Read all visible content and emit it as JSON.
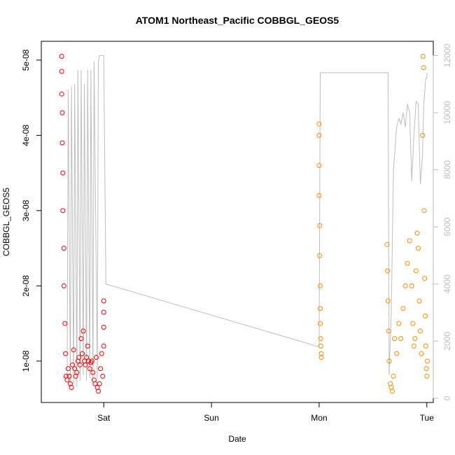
{
  "chart_data": {
    "type": "scatter",
    "title": "ATOM1 Northeast_Pacific COBBGL_GEOS5",
    "xlabel": "Date",
    "ylabel": "COBBGL_GEOS5",
    "x_ticks": [
      "Sat",
      "Sun",
      "Mon",
      "Tue"
    ],
    "y_ticks": [
      "1e-08",
      "2e-08",
      "3e-08",
      "4e-08",
      "5e-08"
    ],
    "y_tick_values": [
      1e-08,
      2e-08,
      3e-08,
      4e-08,
      5e-08
    ],
    "y_range": [
      4.5e-09,
      5.25e-08
    ],
    "y2_ticks": [
      "0",
      "2000",
      "4000",
      "6000",
      "8000",
      "10000",
      "12000"
    ],
    "y2_tick_values": [
      0,
      2000,
      4000,
      6000,
      8000,
      10000,
      12000
    ],
    "y2_range": [
      -150,
      12500
    ],
    "grid": false,
    "colors": {
      "series_1": "#ff0000",
      "series_2": "#ff8c00",
      "altitude_line": "#bebebe"
    },
    "series": [
      {
        "marker": "open-circle",
        "color": "#ff0000",
        "x": [
          -0.39,
          -0.39,
          -0.39,
          -0.385,
          -0.385,
          -0.38,
          -0.38,
          -0.37,
          -0.37,
          -0.36,
          -0.355,
          -0.35,
          -0.34,
          -0.33,
          -0.32,
          -0.31,
          -0.3,
          -0.29,
          -0.28,
          -0.27,
          -0.26,
          -0.25,
          -0.24,
          -0.23,
          -0.22,
          -0.21,
          -0.2,
          -0.19,
          -0.18,
          -0.17,
          -0.16,
          -0.15,
          -0.14,
          -0.13,
          -0.12,
          -0.11,
          -0.1,
          -0.09,
          -0.08,
          -0.07,
          -0.06,
          -0.05,
          -0.04,
          -0.03,
          -0.02,
          -0.01,
          0.0,
          0.0,
          0.0,
          0.0
        ],
        "y": [
          5.05e-08,
          4.85e-08,
          4.55e-08,
          4.3e-08,
          3.9e-08,
          3.5e-08,
          3e-08,
          2.5e-08,
          2e-08,
          1.5e-08,
          1.1e-08,
          8e-09,
          7.5e-09,
          9e-09,
          8e-09,
          7e-09,
          6.5e-09,
          9.5e-09,
          1.15e-08,
          9e-09,
          8e-09,
          8.5e-09,
          1e-08,
          1.05e-08,
          9.5e-09,
          1.3e-08,
          1.1e-08,
          1.4e-08,
          1e-08,
          9.5e-09,
          1.05e-08,
          1.2e-08,
          1e-08,
          9e-09,
          9.8e-09,
          1e-08,
          8.5e-09,
          7.5e-09,
          7e-09,
          1.05e-08,
          6.5e-09,
          6e-09,
          7e-09,
          9e-09,
          1.1e-08,
          8e-09,
          1.2e-08,
          1.45e-08,
          1.65e-08,
          1.8e-08
        ]
      },
      {
        "marker": "open-circle",
        "color": "#ff8c00",
        "x": [
          2.0,
          2.0,
          2.0,
          2.0,
          2.005,
          2.005,
          2.01,
          2.01,
          2.01,
          2.015,
          2.015,
          2.02,
          2.02,
          2.63,
          2.635,
          2.64,
          2.645,
          2.65,
          2.66,
          2.67,
          2.68,
          2.69,
          2.7,
          2.72,
          2.74,
          2.76,
          2.78,
          2.8,
          2.82,
          2.84,
          2.86,
          2.87,
          2.88,
          2.89,
          2.9,
          2.91,
          2.92,
          2.93,
          2.94,
          2.95,
          2.96,
          2.965,
          2.97,
          2.975,
          2.98,
          2.985,
          2.99,
          2.995,
          3.0,
          3.005
        ],
        "y": [
          4.15e-08,
          4e-08,
          3.6e-08,
          3.2e-08,
          2.8e-08,
          2.4e-08,
          2e-08,
          1.7e-08,
          1.5e-08,
          1.3e-08,
          1.2e-08,
          1.1e-08,
          1.05e-08,
          2.55e-08,
          2.2e-08,
          1.8e-08,
          1.4e-08,
          1e-08,
          7e-09,
          6.5e-09,
          6e-09,
          8e-09,
          1.3e-08,
          1.1e-08,
          1.5e-08,
          1.3e-08,
          1.7e-08,
          2e-08,
          2.3e-08,
          2.6e-08,
          2e-08,
          1.5e-08,
          1.2e-08,
          1.3e-08,
          2.2e-08,
          2.7e-08,
          2.5e-08,
          1.8e-08,
          1.4e-08,
          1.1e-08,
          4e-08,
          5.05e-08,
          4.9e-08,
          3e-08,
          2.1e-08,
          1.6e-08,
          1.2e-08,
          9e-09,
          8e-09,
          1e-08
        ]
      }
    ],
    "y2_line": {
      "color": "#bebebe",
      "x": [
        -0.38,
        -0.34,
        -0.33,
        -0.31,
        -0.3,
        -0.28,
        -0.27,
        -0.25,
        -0.24,
        -0.22,
        -0.21,
        -0.19,
        -0.18,
        -0.16,
        -0.15,
        -0.13,
        -0.12,
        -0.1,
        -0.09,
        -0.06,
        -0.05,
        -0.04,
        -0.02,
        -0.01,
        0.0,
        0.02,
        2.0,
        2.01,
        2.02,
        2.64,
        2.65,
        2.67,
        2.69,
        2.72,
        2.74,
        2.76,
        2.78,
        2.8,
        2.82,
        2.84,
        2.86,
        2.88,
        2.9,
        2.92,
        2.94,
        2.96,
        2.97,
        2.99,
        3.0,
        3.0
      ],
      "y": [
        700,
        800,
        10800,
        400,
        10900,
        500,
        11000,
        400,
        11500,
        600,
        11500,
        800,
        11000,
        600,
        11500,
        700,
        11500,
        600,
        11800,
        700,
        11800,
        12000,
        12000,
        12000,
        12000,
        4000,
        1800,
        11400,
        11400,
        11400,
        800,
        3000,
        8000,
        9500,
        9800,
        9600,
        10000,
        9500,
        10300,
        10000,
        7600,
        9200,
        10400,
        10300,
        7500,
        8500,
        10200,
        11200,
        11200,
        11400
      ]
    }
  }
}
